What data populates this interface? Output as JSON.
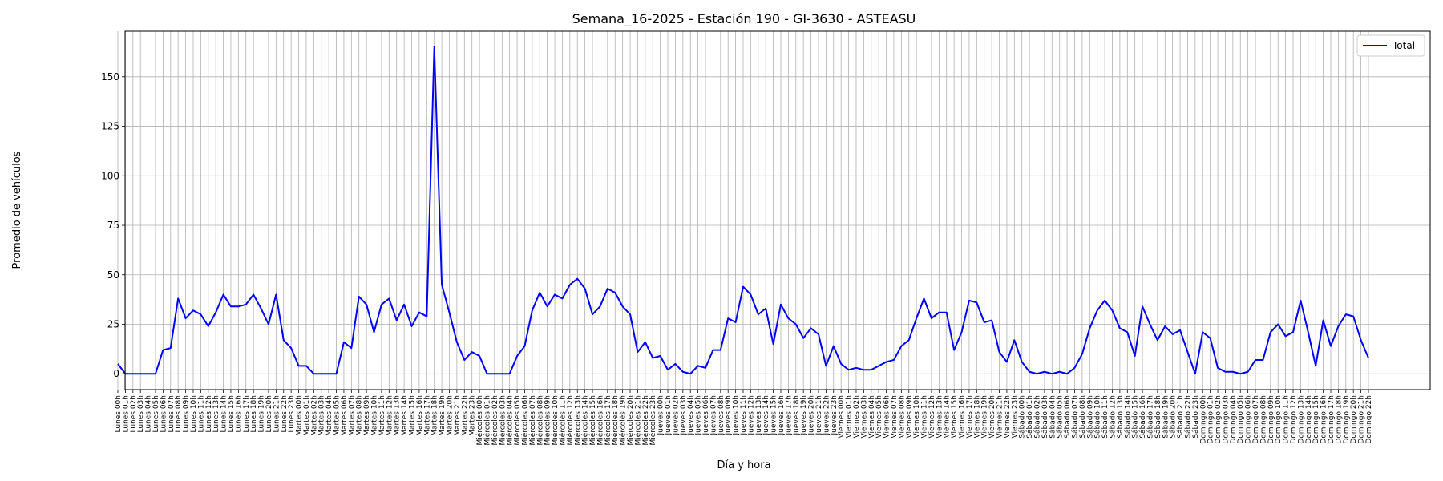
{
  "chart_data": {
    "type": "line",
    "title": "Semana_16-2025 - Estación 190 - GI-3630  - ASTEASU",
    "xlabel": "Día y hora",
    "ylabel": "Promedio de vehículos",
    "ylim": [
      -8,
      173
    ],
    "yticks": [
      0,
      25,
      50,
      75,
      100,
      125,
      150
    ],
    "grid": true,
    "legend_placement": "top-right",
    "days": [
      "Lunes",
      "Martes",
      "Miércoles",
      "Jueves",
      "Viernes",
      "Sábado",
      "Domingo"
    ],
    "hours": [
      "00h",
      "01h",
      "02h",
      "03h",
      "04h",
      "05h",
      "06h",
      "07h",
      "08h",
      "09h",
      "10h",
      "11h",
      "12h",
      "13h",
      "14h",
      "15h",
      "16h",
      "17h",
      "18h",
      "19h",
      "20h",
      "21h",
      "22h",
      "23h"
    ],
    "series": [
      {
        "name": "Total",
        "color": "#0000ff",
        "values": [
          5,
          0,
          0,
          0,
          0,
          0,
          12,
          13,
          38,
          28,
          32,
          30,
          24,
          31,
          40,
          34,
          34,
          35,
          40,
          33,
          25,
          40,
          17,
          13,
          4,
          4,
          0,
          0,
          0,
          0,
          16,
          13,
          39,
          35,
          21,
          35,
          38,
          27,
          35,
          24,
          31,
          29,
          165,
          45,
          31,
          16,
          7,
          11,
          9,
          0,
          0,
          0,
          0,
          9,
          14,
          32,
          41,
          34,
          40,
          38,
          45,
          48,
          43,
          30,
          34,
          43,
          41,
          34,
          30,
          11,
          16,
          8,
          9,
          2,
          5,
          1,
          0,
          4,
          3,
          12,
          12,
          28,
          26,
          44,
          40,
          30,
          33,
          15,
          35,
          28,
          25,
          18,
          23,
          20,
          4,
          14,
          5,
          2,
          3,
          2,
          2,
          4,
          6,
          7,
          14,
          17,
          28,
          38,
          28,
          31,
          31,
          12,
          21,
          37,
          36,
          26,
          27,
          11,
          6,
          17,
          6,
          1,
          0,
          1,
          0,
          1,
          0,
          3,
          10,
          23,
          32,
          37,
          32,
          23,
          21,
          9,
          34,
          25,
          17,
          24,
          20,
          22,
          11,
          0,
          21,
          18,
          3,
          1,
          1,
          0,
          1,
          7,
          7,
          21,
          25,
          19,
          21,
          37,
          21,
          4,
          27,
          14,
          24,
          30,
          29,
          17,
          8
        ]
      }
    ]
  }
}
